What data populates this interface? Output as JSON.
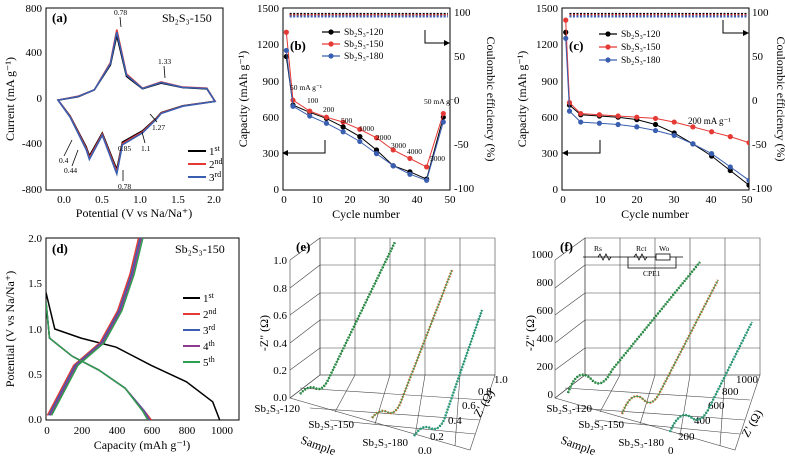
{
  "colors": {
    "black": "#000000",
    "red": "#e53935",
    "blue": "#3a5fb0",
    "green": "#2e9e4f",
    "purple": "#8e3a8e",
    "teal": "#1f8a96",
    "orange": "#d9602c",
    "darkgreen": "#1f6e33"
  },
  "panels": {
    "a": {
      "label": "(a)",
      "title": "Sb₂S₃-150",
      "ylabel": "Current (mA g⁻¹)",
      "xlabel": "Potential (V vs Na/Na⁺)",
      "yticks": [
        "800",
        "400",
        "0",
        "-400",
        "-800"
      ],
      "xticks": [
        "0.0",
        "0.5",
        "1.0",
        "1.5",
        "2.0"
      ],
      "annotations": [
        "0.78",
        "1.33",
        "1.27",
        "1.1",
        "0.85",
        "0.4",
        "0.44",
        "0.78"
      ],
      "legend": [
        {
          "sup": "1",
          "suf": "st"
        },
        {
          "sup": "2",
          "suf": "nd"
        },
        {
          "sup": "3",
          "suf": "rd"
        }
      ]
    },
    "b": {
      "label": "(b)",
      "ylabel": "Capacity (mAh g⁻¹)",
      "ylabel2": "Coulombic efficiency (%)",
      "xlabel": "Cycle number",
      "yticks": [
        "1500",
        "1200",
        "900",
        "600",
        "300",
        "0"
      ],
      "yticks2": [
        "100",
        "50",
        "0",
        "-50",
        "-100"
      ],
      "xticks": [
        "0",
        "10",
        "20",
        "30",
        "40",
        "50"
      ],
      "legend": [
        "Sb₂S₃-120",
        "Sb₂S₃-150",
        "Sb₂S₃-180"
      ],
      "rates": [
        "50 mA g⁻¹",
        "100",
        "200",
        "500",
        "1000",
        "2000",
        "3000",
        "4000",
        "5000",
        "50 mA g⁻¹"
      ]
    },
    "c": {
      "label": "(c)",
      "ylabel": "Capacity (mAh g⁻¹)",
      "ylabel2": "Coulombic efficiency (%)",
      "xlabel": "Cycle number",
      "yticks": [
        "1500",
        "1200",
        "900",
        "600",
        "300",
        "0"
      ],
      "yticks2": [
        "100",
        "50",
        "0",
        "-50",
        "-100"
      ],
      "xticks": [
        "0",
        "10",
        "20",
        "30",
        "40",
        "50"
      ],
      "legend": [
        "Sb₂S₃-120",
        "Sb₂S₃-150",
        "Sb₂S₃-180"
      ],
      "rate": "200 mA g⁻¹"
    },
    "d": {
      "label": "(d)",
      "title": "Sb₂S₃-150",
      "ylabel": "Potential (V vs Na/Na⁺)",
      "xlabel": "Capacity (mAh g⁻¹)",
      "yticks": [
        "2.0",
        "1.5",
        "1.0",
        "0.5",
        "0.0"
      ],
      "xticks": [
        "0",
        "200",
        "400",
        "600",
        "800",
        "1000"
      ],
      "legend": [
        {
          "sup": "1",
          "suf": "st"
        },
        {
          "sup": "2",
          "suf": "nd"
        },
        {
          "sup": "3",
          "suf": "rd"
        },
        {
          "sup": "4",
          "suf": "th"
        },
        {
          "sup": "5",
          "suf": "th"
        }
      ]
    },
    "e": {
      "label": "(e)",
      "ylabel": "-Z\" (Ω)",
      "xlabel": "Z' (Ω)",
      "samplelabel": "Sample",
      "zticks": [
        "1.0",
        "0.8",
        "0.6",
        "0.4",
        "0.2",
        "0.0"
      ],
      "xticks": [
        "0.0",
        "0.2",
        "0.4",
        "0.6",
        "0.8",
        "1.0"
      ],
      "samples": [
        "Sb₂S₃-120",
        "Sb₂S₃-150",
        "Sb₂S₃-180"
      ]
    },
    "f": {
      "label": "(f)",
      "ylabel": "-Z\" (Ω)",
      "xlabel": "Z' (Ω)",
      "samplelabel": "Sample",
      "zticks": [
        "1000",
        "800",
        "600",
        "400",
        "200",
        "0"
      ],
      "xticks": [
        "0",
        "200",
        "400",
        "600",
        "800",
        "1000"
      ],
      "samples": [
        "Sb₂S₃-120",
        "Sb₂S₃-150",
        "Sb₂S₃-180"
      ],
      "circuit": [
        "Rs",
        "Rct",
        "Wo",
        "CPE1"
      ]
    }
  },
  "chart_data": [
    {
      "type": "line",
      "panel": "a",
      "title": "Sb₂S₃-150",
      "xlabel": "Potential (V vs Na/Na⁺)",
      "ylabel": "Current (mA g⁻¹)",
      "xlim": [
        -0.1,
        2.1
      ],
      "ylim": [
        -800,
        800
      ],
      "series": [
        {
          "name": "1st",
          "x": [
            0.05,
            0.3,
            0.5,
            0.7,
            0.78,
            0.9,
            1.1,
            1.33,
            1.6,
            1.9,
            2.0
          ],
          "y": [
            -10,
            20,
            80,
            300,
            560,
            200,
            90,
            140,
            100,
            90,
            -20
          ]
        },
        {
          "name": "2nd",
          "x": [
            0.05,
            0.3,
            0.5,
            0.7,
            0.78,
            0.9,
            1.1,
            1.33,
            1.6,
            1.9,
            2.0
          ],
          "y": [
            -10,
            25,
            80,
            320,
            610,
            220,
            95,
            150,
            105,
            95,
            -20
          ]
        },
        {
          "name": "3rd",
          "x": [
            0.05,
            0.3,
            0.5,
            0.7,
            0.78,
            0.9,
            1.1,
            1.33,
            1.6,
            1.9,
            2.0
          ],
          "y": [
            -10,
            22,
            80,
            310,
            590,
            210,
            92,
            145,
            102,
            92,
            -20
          ]
        }
      ]
    },
    {
      "type": "scatter",
      "panel": "b",
      "xlabel": "Cycle number",
      "ylabel": "Capacity (mAh g⁻¹)",
      "xlim": [
        0,
        50
      ],
      "ylim": [
        0,
        1500
      ],
      "series": [
        {
          "name": "Sb₂S₃-120",
          "x": [
            1,
            3,
            8,
            13,
            18,
            23,
            28,
            33,
            38,
            43,
            48
          ],
          "y": [
            1100,
            700,
            640,
            590,
            520,
            440,
            330,
            200,
            150,
            90,
            600
          ]
        },
        {
          "name": "Sb₂S₃-150",
          "x": [
            1,
            3,
            8,
            13,
            18,
            23,
            28,
            33,
            38,
            43,
            48
          ],
          "y": [
            1300,
            740,
            650,
            600,
            560,
            500,
            430,
            330,
            260,
            190,
            630
          ]
        },
        {
          "name": "Sb₂S₃-180",
          "x": [
            1,
            3,
            8,
            13,
            18,
            23,
            28,
            33,
            38,
            43,
            48
          ],
          "y": [
            1150,
            690,
            610,
            550,
            480,
            400,
            300,
            200,
            130,
            80,
            560
          ]
        }
      ]
    },
    {
      "type": "scatter",
      "panel": "c",
      "xlabel": "Cycle number",
      "ylabel": "Capacity (mAh g⁻¹)",
      "xlim": [
        0,
        50
      ],
      "ylim": [
        0,
        1500
      ],
      "series": [
        {
          "name": "Sb₂S₃-120",
          "x": [
            1,
            2,
            5,
            10,
            15,
            20,
            25,
            30,
            35,
            40,
            45,
            50
          ],
          "y": [
            1300,
            700,
            620,
            610,
            600,
            580,
            540,
            470,
            380,
            280,
            160,
            40
          ]
        },
        {
          "name": "Sb₂S₃-150",
          "x": [
            1,
            2,
            5,
            10,
            15,
            20,
            25,
            30,
            35,
            40,
            45,
            50
          ],
          "y": [
            1400,
            720,
            630,
            620,
            610,
            600,
            590,
            560,
            520,
            480,
            440,
            390
          ]
        },
        {
          "name": "Sb₂S₃-180",
          "x": [
            1,
            2,
            5,
            10,
            15,
            20,
            25,
            30,
            35,
            40,
            45,
            50
          ],
          "y": [
            1250,
            650,
            560,
            550,
            540,
            520,
            490,
            450,
            380,
            300,
            190,
            80
          ]
        }
      ]
    },
    {
      "type": "line",
      "panel": "d",
      "title": "Sb₂S₃-150",
      "xlabel": "Capacity (mAh g⁻¹)",
      "ylabel": "Potential (V vs Na/Na⁺)",
      "xlim": [
        0,
        1100
      ],
      "ylim": [
        0,
        2
      ],
      "series": [
        {
          "name": "1st",
          "x": [
            0,
            50,
            200,
            400,
            600,
            800,
            950,
            990
          ],
          "y": [
            1.4,
            1.0,
            0.9,
            0.8,
            0.6,
            0.42,
            0.2,
            0.0
          ]
        },
        {
          "name": "2nd",
          "x": [
            0,
            20,
            150,
            300,
            450,
            560,
            600
          ],
          "y": [
            1.3,
            0.9,
            0.7,
            0.55,
            0.35,
            0.1,
            0.0
          ]
        },
        {
          "name": "3rd",
          "x": [
            0,
            20,
            150,
            300,
            450,
            560,
            590
          ],
          "y": [
            1.3,
            0.9,
            0.7,
            0.55,
            0.35,
            0.1,
            0.0
          ]
        },
        {
          "name": "4th",
          "x": [
            0,
            20,
            150,
            300,
            450,
            555,
            585
          ],
          "y": [
            1.3,
            0.9,
            0.7,
            0.55,
            0.35,
            0.1,
            0.0
          ]
        },
        {
          "name": "5th",
          "x": [
            0,
            20,
            150,
            300,
            450,
            550,
            580
          ],
          "y": [
            1.3,
            0.9,
            0.7,
            0.55,
            0.35,
            0.1,
            0.0
          ]
        }
      ]
    }
  ]
}
